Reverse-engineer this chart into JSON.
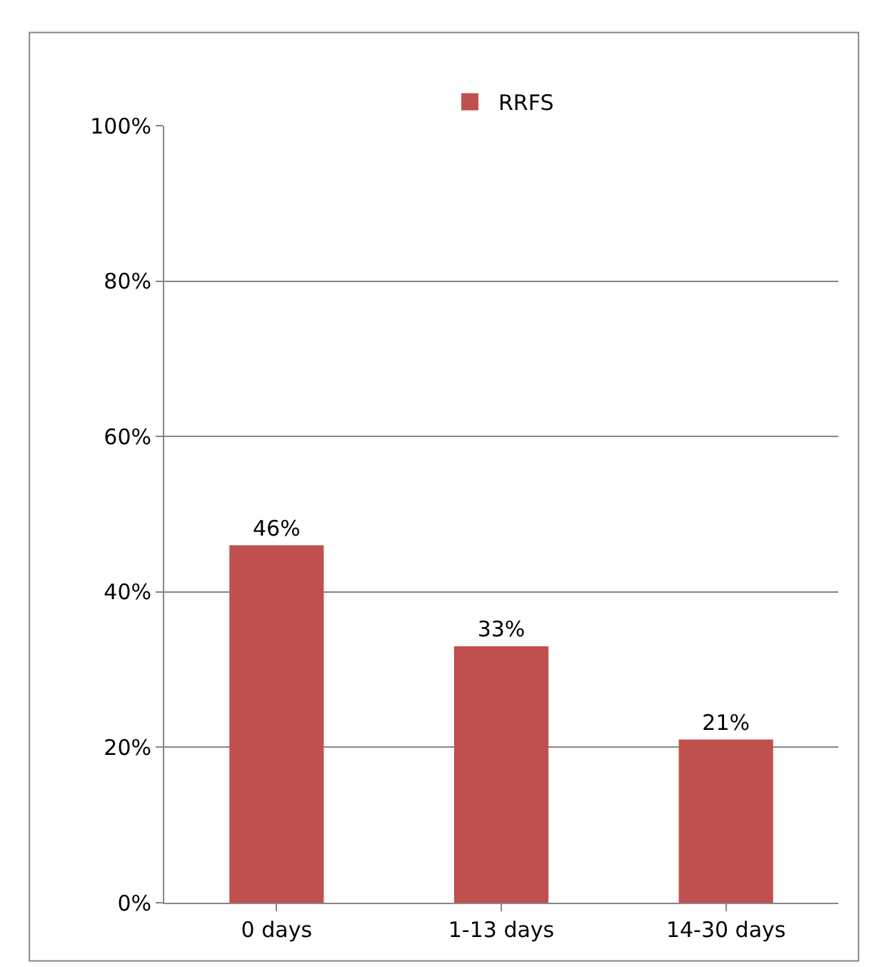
{
  "chart_data": {
    "type": "bar",
    "categories": [
      "0 days",
      "1-13 days",
      "14-30 days"
    ],
    "series": [
      {
        "name": "RRFS",
        "color": "#c0504d",
        "values": [
          46,
          33,
          21
        ],
        "value_labels": [
          "46%",
          "33%",
          "21%"
        ]
      }
    ],
    "ylim": [
      0,
      100
    ],
    "yticks": [
      {
        "value": 0,
        "label": "0%"
      },
      {
        "value": 20,
        "label": "20%"
      },
      {
        "value": 40,
        "label": "40%"
      },
      {
        "value": 60,
        "label": "60%"
      },
      {
        "value": 80,
        "label": "80%"
      },
      {
        "value": 100,
        "label": "100%"
      }
    ],
    "grid": "y",
    "legend": "top"
  }
}
